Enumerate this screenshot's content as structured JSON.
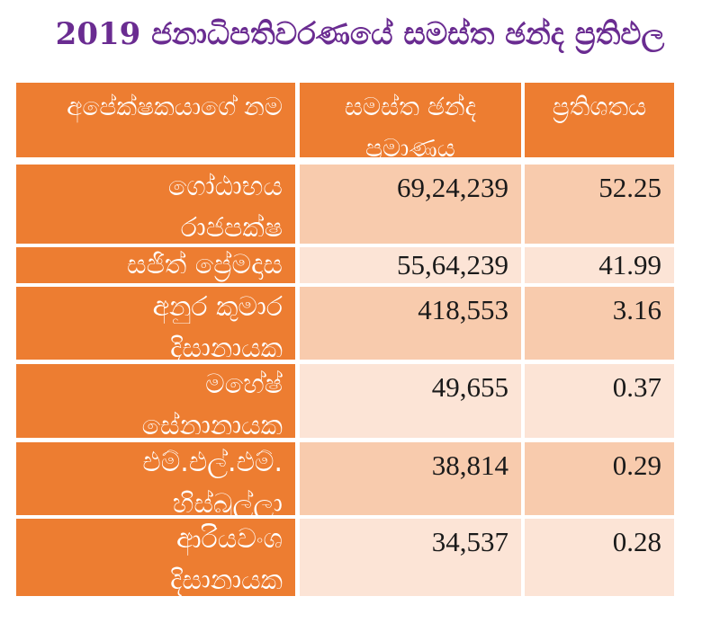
{
  "title": "2019 ජනාධිපතිවරණයේ සමස්ත ඡන්ද ප්‍රතිඵල",
  "colors": {
    "title": "#6a2c91",
    "orange": "#ed7d31",
    "shade_dark": "#f8cbad",
    "shade_light": "#fce4d6"
  },
  "table": {
    "headers": {
      "candidate": "අපේක්ෂකයාගේ නම",
      "total_votes": "සමස්ත ඡන්ද ප්‍රමාණය",
      "percentage": "ප්‍රතිශතය"
    },
    "rows": [
      {
        "name": "ගෝඨාභය රාජපක්ෂ",
        "votes": "69,24,239",
        "percent": "52.25"
      },
      {
        "name": "සජිත් ප්‍රේමදාස",
        "votes": "55,64,239",
        "percent": "41.99"
      },
      {
        "name": "අනුර කුමාර දිසානායක",
        "votes": "418,553",
        "percent": "3.16"
      },
      {
        "name": "මහේෂ් සේනානායක",
        "votes": "49,655",
        "percent": "0.37"
      },
      {
        "name": "එම්.එල්.එම්. හිස්බුල්ලා",
        "votes": "38,814",
        "percent": "0.29"
      },
      {
        "name": "ආරියවංශ දිසානායක",
        "votes": "34,537",
        "percent": "0.28"
      }
    ]
  }
}
